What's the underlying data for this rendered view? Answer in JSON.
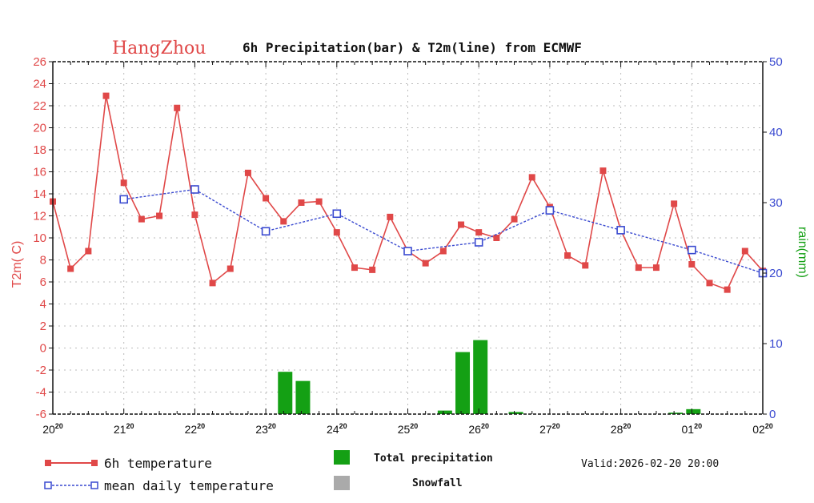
{
  "chart_data": {
    "type": "bar+line",
    "title_city": "HangZhou",
    "title": "6h Precipitation(bar) & T2m(line) from ECMWF",
    "ylabel_left": "T2m( C)",
    "ylabel_right": "rain(mm)",
    "ylim_left": [
      -6,
      26
    ],
    "yticks_left": [
      -6,
      -4,
      -2,
      0,
      2,
      4,
      6,
      8,
      10,
      12,
      14,
      16,
      18,
      20,
      22,
      24,
      26
    ],
    "ylim_right": [
      0,
      50
    ],
    "yticks_right": [
      0,
      10,
      20,
      30,
      40,
      50
    ],
    "x_tick_labels": [
      {
        "day": "20",
        "hour": "20"
      },
      {
        "day": "21",
        "hour": "20"
      },
      {
        "day": "22",
        "hour": "20"
      },
      {
        "day": "23",
        "hour": "20"
      },
      {
        "day": "24",
        "hour": "20"
      },
      {
        "day": "25",
        "hour": "20"
      },
      {
        "day": "26",
        "hour": "20"
      },
      {
        "day": "27",
        "hour": "20"
      },
      {
        "day": "28",
        "hour": "20"
      },
      {
        "day": "01",
        "hour": "20"
      },
      {
        "day": "02",
        "hour": "20"
      }
    ],
    "x_units": "6-hour steps from 20^20 (0) to 02^20 (40)",
    "grid": true,
    "series": [
      {
        "name": "6h temperature",
        "color": "#e04848",
        "type": "line",
        "x": [
          0,
          1,
          2,
          3,
          4,
          5,
          6,
          7,
          8,
          9,
          10,
          11,
          12,
          13,
          14,
          15,
          16,
          17,
          18,
          19,
          20,
          21,
          22,
          23,
          24,
          25,
          26,
          27,
          28,
          29,
          30,
          31,
          32,
          33,
          34,
          35,
          36,
          37,
          38,
          39,
          40
        ],
        "values": [
          13.3,
          7.2,
          8.8,
          22.9,
          15.0,
          11.7,
          12.0,
          21.8,
          12.1,
          5.9,
          7.2,
          15.9,
          13.6,
          11.5,
          13.2,
          13.3,
          10.5,
          7.3,
          7.1,
          11.9,
          8.8,
          7.7,
          8.8,
          11.2,
          10.5,
          10.0,
          11.7,
          15.5,
          12.8,
          8.4,
          7.5,
          16.1,
          10.7,
          7.3,
          7.3,
          13.1,
          7.6,
          5.9,
          5.3,
          8.8,
          7.0
        ]
      },
      {
        "name": "mean daily temperature",
        "color": "#3a4ad0",
        "type": "line",
        "x": [
          4,
          8,
          12,
          16,
          20,
          24,
          28,
          32,
          36,
          40
        ],
        "values": [
          13.5,
          14.4,
          10.6,
          12.2,
          8.8,
          9.6,
          12.5,
          10.7,
          8.9,
          6.8
        ]
      },
      {
        "name": "Total precipitation",
        "color": "#14a014",
        "type": "bar",
        "axis": "right",
        "x": [
          13,
          14,
          22,
          23,
          24,
          26,
          35,
          36
        ],
        "values": [
          6.0,
          4.7,
          0.5,
          8.8,
          10.5,
          0.3,
          0.2,
          0.7
        ]
      },
      {
        "name": "Snowfall",
        "color": "#aaaaaa",
        "type": "bar",
        "axis": "right",
        "x": [],
        "values": []
      }
    ],
    "valid": "Valid:2026-02-20 20:00"
  }
}
